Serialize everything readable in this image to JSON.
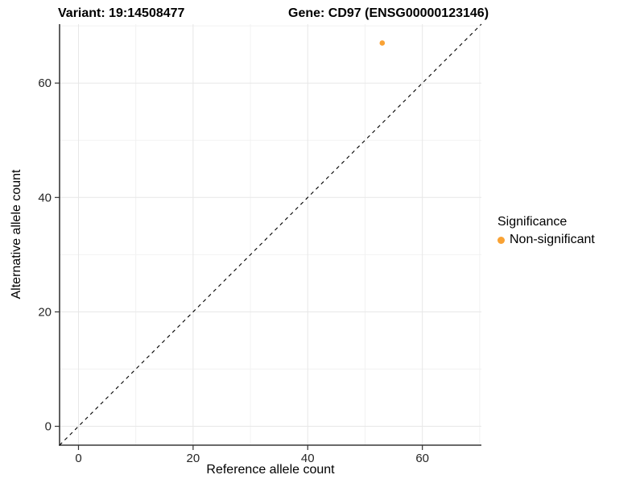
{
  "chart_data": {
    "type": "scatter",
    "titles": {
      "left": "Variant: 19:14508477",
      "right": "Gene: CD97 (ENSG00000123146)"
    },
    "xlabel": "Reference allele count",
    "ylabel": "Alternative allele count",
    "xlim": [
      -3.3,
      70.3
    ],
    "ylim": [
      -3.3,
      70.3
    ],
    "x_major_ticks": [
      0,
      20,
      40,
      60
    ],
    "y_major_ticks": [
      0,
      20,
      40,
      60
    ],
    "x_minor_ticks": [
      10,
      30,
      50,
      70
    ],
    "y_minor_ticks": [
      10,
      30,
      50,
      70
    ],
    "grid": "major+minor on white panel",
    "points": [
      {
        "x": 53,
        "y": 67,
        "series": "Non-significant"
      }
    ],
    "identity_line": {
      "equation": "y = x",
      "style": "dashed"
    },
    "legend": {
      "title": "Significance",
      "position": "right",
      "items": [
        {
          "label": "Non-significant",
          "color": "#F9A234"
        }
      ]
    }
  },
  "colors": {
    "point": "#F9A234",
    "grid_major": "#E7E7E7",
    "grid_minor": "#F2F2F2",
    "axis_line": "#383838",
    "tick_mark": "#333333",
    "tick_text": "#262626",
    "identity_line": "#000000",
    "background": "#FFFFFF"
  }
}
